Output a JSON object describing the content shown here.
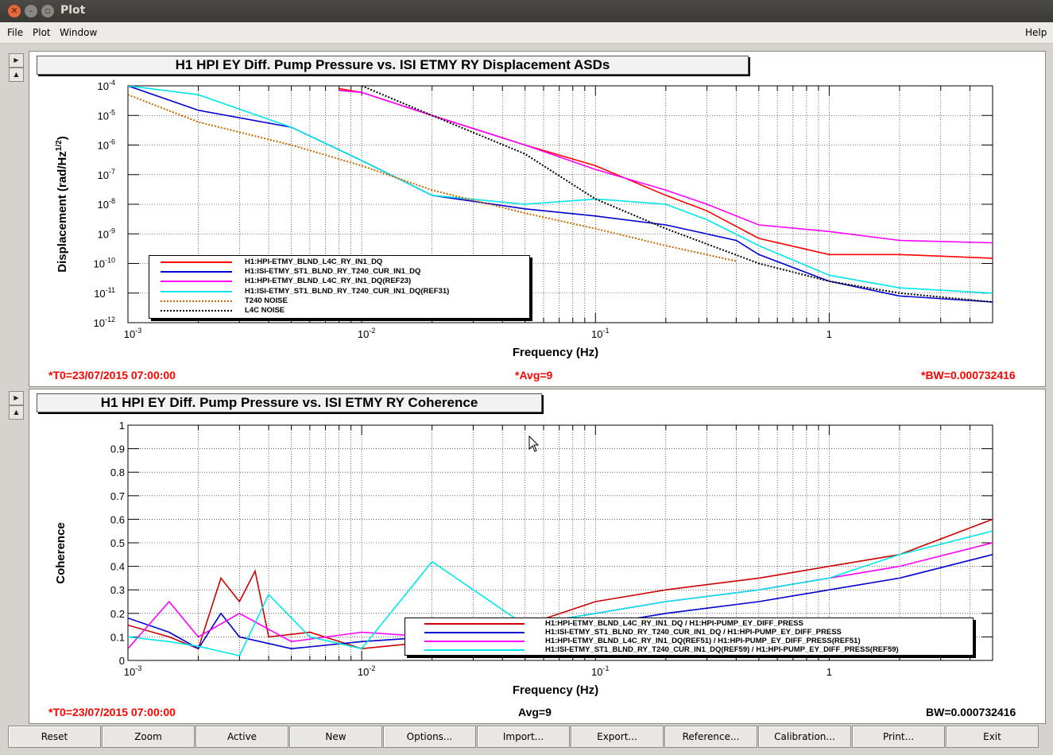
{
  "window": {
    "title": "Plot"
  },
  "menu": {
    "file": "File",
    "plot": "Plot",
    "window": "Window",
    "help": "Help"
  },
  "top_panel": {
    "title": "H1 HPI EY Diff. Pump Pressure vs. ISI ETMY RY Displacement ASDs",
    "t0": "*T0=23/07/2015 07:00:00",
    "avg": "*Avg=9",
    "bw": "*BW=0.000732416",
    "legend": [
      {
        "name": "H1:HPI-ETMY_BLND_L4C_RY_IN1_DQ",
        "color": "#ff0000",
        "style": "solid"
      },
      {
        "name": "H1:ISI-ETMY_ST1_BLND_RY_T240_CUR_IN1_DQ",
        "color": "#0000cc",
        "style": "solid"
      },
      {
        "name": "H1:HPI-ETMY_BLND_L4C_RY_IN1_DQ(REF23)",
        "color": "#ff00ff",
        "style": "solid"
      },
      {
        "name": "H1:ISI-ETMY_ST1_BLND_RY_T240_CUR_IN1_DQ(REF31)",
        "color": "#00e5e5",
        "style": "solid"
      },
      {
        "name": "T240 NOISE",
        "color": "#cc6600",
        "style": "dotted"
      },
      {
        "name": "L4C NOISE",
        "color": "#000000",
        "style": "dotted"
      }
    ]
  },
  "bottom_panel": {
    "title": "H1 HPI EY Diff. Pump Pressure vs. ISI ETMY RY Coherence",
    "t0": "*T0=23/07/2015 07:00:00",
    "avg": "Avg=9",
    "bw": "BW=0.000732416",
    "legend": [
      {
        "name": "H1:HPI-ETMY_BLND_L4C_RY_IN1_DQ / H1:HPI-PUMP_EY_DIFF_PRESS",
        "color": "#cc0000",
        "style": "solid"
      },
      {
        "name": "H1:ISI-ETMY_ST1_BLND_RY_T240_CUR_IN1_DQ / H1:HPI-PUMP_EY_DIFF_PRESS",
        "color": "#0000cc",
        "style": "solid"
      },
      {
        "name": "H1:HPI-ETMY_BLND_L4C_RY_IN1_DQ(REF51) / H1:HPI-PUMP_EY_DIFF_PRESS(REF51)",
        "color": "#ff00ff",
        "style": "solid"
      },
      {
        "name": "H1:ISI-ETMY_ST1_BLND_RY_T240_CUR_IN1_DQ(REF59) / H1:HPI-PUMP_EY_DIFF_PRESS(REF59)",
        "color": "#00e5e5",
        "style": "solid"
      }
    ]
  },
  "buttons": [
    "Reset",
    "Zoom",
    "Active",
    "New",
    "Options...",
    "Import...",
    "Export...",
    "Reference...",
    "Calibration...",
    "Print...",
    "Exit"
  ],
  "chart_data": [
    {
      "type": "line",
      "title": "H1 HPI EY Diff. Pump Pressure vs. ISI ETMY RY Displacement ASDs",
      "xlabel": "Frequency (Hz)",
      "ylabel": "Displacement (rad/Hz^1/2)",
      "xscale": "log",
      "yscale": "log",
      "xlim": [
        0.001,
        5
      ],
      "ylim": [
        1e-12,
        0.0001
      ],
      "x_tick_labels": [
        "10^-3",
        "10^-2",
        "10^-1",
        "1"
      ],
      "y_tick_labels": [
        "10^-12",
        "10^-11",
        "10^-10",
        "10^-9",
        "10^-8",
        "10^-7",
        "10^-6",
        "10^-5",
        "10^-4"
      ],
      "grid": true,
      "legend_position": "bottom-left",
      "series": [
        {
          "name": "H1:HPI-ETMY_BLND_L4C_RY_IN1_DQ",
          "x": [
            0.008,
            0.01,
            0.02,
            0.05,
            0.1,
            0.2,
            0.3,
            0.5,
            1,
            2,
            5
          ],
          "y": [
            8e-05,
            6e-05,
            1e-05,
            1e-06,
            2e-07,
            2e-08,
            6e-09,
            7e-10,
            2e-10,
            2e-10,
            1.5e-10
          ]
        },
        {
          "name": "H1:ISI-ETMY_ST1_BLND_RY_T240_CUR_IN1_DQ",
          "x": [
            0.001,
            0.002,
            0.005,
            0.01,
            0.02,
            0.05,
            0.1,
            0.2,
            0.4,
            0.5,
            1,
            2,
            5
          ],
          "y": [
            0.0001,
            1.5e-05,
            4e-06,
            3e-07,
            2e-08,
            7e-09,
            4e-09,
            2e-09,
            6e-10,
            2e-10,
            2.5e-11,
            8e-12,
            5e-12
          ]
        },
        {
          "name": "H1:HPI-ETMY_BLND_L4C_RY_IN1_DQ(REF23)",
          "x": [
            0.008,
            0.01,
            0.02,
            0.05,
            0.1,
            0.2,
            0.3,
            0.5,
            1,
            2,
            5
          ],
          "y": [
            7e-05,
            6e-05,
            1e-05,
            1e-06,
            1.5e-07,
            3e-08,
            1e-08,
            2e-09,
            1.2e-09,
            6e-10,
            5e-10
          ]
        },
        {
          "name": "H1:ISI-ETMY_ST1_BLND_RY_T240_CUR_IN1_DQ(REF31)",
          "x": [
            0.001,
            0.002,
            0.005,
            0.01,
            0.02,
            0.05,
            0.1,
            0.2,
            0.3,
            0.5,
            1,
            2,
            5
          ],
          "y": [
            0.0001,
            5e-05,
            4e-06,
            3e-07,
            2e-08,
            1e-08,
            1.5e-08,
            1e-08,
            3e-09,
            4e-10,
            4e-11,
            1.5e-11,
            1e-11
          ]
        },
        {
          "name": "T240 NOISE",
          "x": [
            0.001,
            0.002,
            0.005,
            0.01,
            0.02,
            0.05,
            0.1,
            0.2,
            0.4
          ],
          "y": [
            5e-05,
            6e-06,
            1e-06,
            2e-07,
            3e-08,
            5e-09,
            1.5e-09,
            4e-10,
            1.2e-10
          ]
        },
        {
          "name": "L4C NOISE",
          "x": [
            0.01,
            0.02,
            0.05,
            0.1,
            0.2,
            0.5,
            1,
            2,
            5
          ],
          "y": [
            0.0001,
            1e-05,
            5e-07,
            1.5e-08,
            1.5e-09,
            1e-10,
            2.5e-11,
            1e-11,
            5e-12
          ]
        }
      ]
    },
    {
      "type": "line",
      "title": "H1 HPI EY Diff. Pump Pressure vs. ISI ETMY RY Coherence",
      "xlabel": "Frequency (Hz)",
      "ylabel": "Coherence",
      "xscale": "log",
      "xlim": [
        0.001,
        5
      ],
      "ylim": [
        0,
        1
      ],
      "x_tick_labels": [
        "10^-3",
        "10^-2",
        "10^-1",
        "1"
      ],
      "y_tick_labels": [
        "0",
        "0.1",
        "0.2",
        "0.3",
        "0.4",
        "0.5",
        "0.6",
        "0.7",
        "0.8",
        "0.9",
        "1"
      ],
      "grid": true,
      "legend_position": "bottom-right",
      "series": [
        {
          "name": "H1:HPI-ETMY_BLND_L4C_RY_IN1_DQ / H1:HPI-PUMP_EY_DIFF_PRESS",
          "x": [
            0.001,
            0.0015,
            0.002,
            0.0025,
            0.003,
            0.0035,
            0.004,
            0.006,
            0.01,
            0.02,
            0.05,
            0.1,
            0.2,
            0.5,
            1,
            2,
            5
          ],
          "y": [
            0.15,
            0.1,
            0.05,
            0.35,
            0.25,
            0.38,
            0.1,
            0.12,
            0.05,
            0.08,
            0.15,
            0.25,
            0.3,
            0.35,
            0.4,
            0.45,
            0.6
          ]
        },
        {
          "name": "H1:ISI-ETMY_ST1_BLND_RY_T240_CUR_IN1_DQ / H1:HPI-PUMP_EY_DIFF_PRESS",
          "x": [
            0.001,
            0.0015,
            0.002,
            0.0025,
            0.003,
            0.005,
            0.01,
            0.02,
            0.05,
            0.1,
            0.2,
            0.5,
            1,
            2,
            5
          ],
          "y": [
            0.18,
            0.12,
            0.05,
            0.2,
            0.1,
            0.05,
            0.08,
            0.1,
            0.12,
            0.15,
            0.2,
            0.25,
            0.3,
            0.35,
            0.45
          ]
        },
        {
          "name": "H1:HPI-ETMY_BLND_L4C_RY_IN1_DQ(REF51) / H1:HPI-PUMP_EY_DIFF_PRESS(REF51)",
          "x": [
            0.001,
            0.0015,
            0.002,
            0.003,
            0.005,
            0.01,
            0.02,
            0.05,
            0.1,
            0.2,
            0.5,
            1,
            2,
            5
          ],
          "y": [
            0.05,
            0.25,
            0.1,
            0.2,
            0.08,
            0.12,
            0.1,
            0.15,
            0.2,
            0.25,
            0.3,
            0.35,
            0.4,
            0.5
          ]
        },
        {
          "name": "H1:ISI-ETMY_ST1_BLND_RY_T240_CUR_IN1_DQ(REF59) / H1:HPI-PUMP_EY_DIFF_PRESS(REF59)",
          "x": [
            0.001,
            0.0015,
            0.002,
            0.003,
            0.004,
            0.006,
            0.01,
            0.02,
            0.05,
            0.1,
            0.2,
            0.5,
            1,
            2,
            5
          ],
          "y": [
            0.1,
            0.08,
            0.06,
            0.02,
            0.28,
            0.1,
            0.05,
            0.42,
            0.15,
            0.2,
            0.25,
            0.3,
            0.35,
            0.45,
            0.55
          ]
        }
      ]
    }
  ]
}
